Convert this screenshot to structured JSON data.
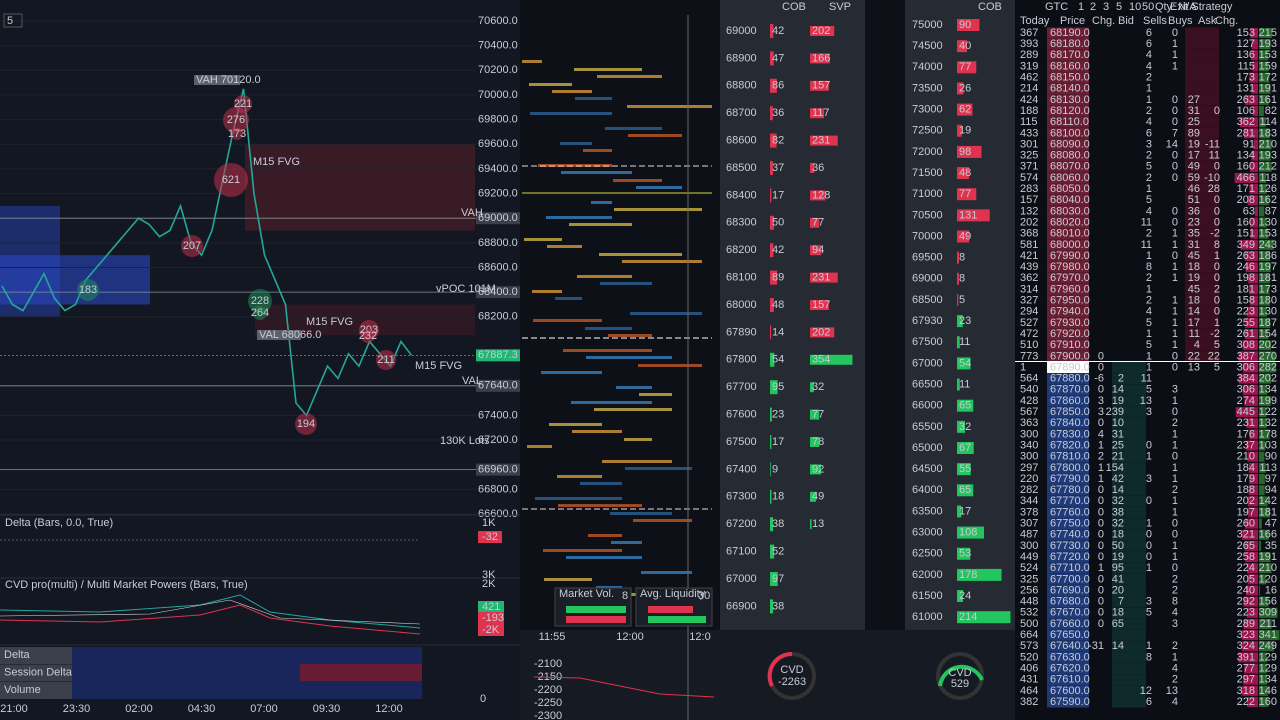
{
  "main_chart": {
    "price_axis": [
      {
        "value": 70600,
        "label": "70600.0"
      },
      {
        "value": 70400,
        "label": "70400.0"
      },
      {
        "value": 70200,
        "label": "70200.0"
      },
      {
        "value": 70000,
        "label": "70000.0"
      },
      {
        "value": 69800,
        "label": "69800.0"
      },
      {
        "value": 69600,
        "label": "69600.0"
      },
      {
        "value": 69400,
        "label": "69400.0"
      },
      {
        "value": 69200,
        "label": "69200.0"
      },
      {
        "value": 68800,
        "label": "68800.0"
      },
      {
        "value": 68600,
        "label": "68600.0"
      },
      {
        "value": 68200,
        "label": "68200.0"
      },
      {
        "value": 67400,
        "label": "67400.0"
      },
      {
        "value": 67200,
        "label": "67200.0"
      },
      {
        "value": 66800,
        "label": "66800.0"
      },
      {
        "value": 66600,
        "label": "66600.0"
      }
    ],
    "price_limits": [
      66600,
      70600
    ],
    "highlighted_prices": [
      {
        "value": 69000,
        "label": "69000.0"
      },
      {
        "value": 68400,
        "label": "68400.0"
      },
      {
        "value": 67887.3,
        "label": "67887.3"
      },
      {
        "value": 67640,
        "label": "67640.0"
      },
      {
        "value": 66960,
        "label": "66960.0"
      }
    ],
    "time_axis": [
      "21:00",
      "23:30",
      "02:00",
      "04:30",
      "07:00",
      "09:30",
      "12:00"
    ],
    "price_path": [
      68450,
      68300,
      68250,
      68400,
      68550,
      68350,
      68250,
      68300,
      68500,
      68600,
      68700,
      68800,
      68900,
      69000,
      68950,
      68850,
      68900,
      69100,
      68800,
      68700,
      68900,
      69300,
      69700,
      70050,
      69200,
      68700,
      68500,
      68300,
      67500,
      67400,
      67600,
      67800,
      67700,
      67900,
      67800,
      68000,
      67900,
      67800,
      68000,
      67887.3
    ],
    "level_labels": {
      "vah_tag": "VAH 70120.0",
      "val_tag": "VAL 68066.0",
      "vah": "VAH",
      "val": "VAL",
      "vpoc": "vPOC 101M",
      "lots": "130K Lots"
    },
    "fvg_labels": [
      "M15 FVG",
      "M15 FVG",
      "M15 FVG"
    ],
    "bubbles": [
      276,
      221,
      173,
      621,
      207,
      183,
      228,
      264,
      203,
      232,
      211,
      194
    ],
    "timeframe": "5",
    "delta_pane": {
      "title": "Delta (Bars, 0.0, True)",
      "axis": [
        "1K",
        "-32"
      ]
    },
    "cvd_pane": {
      "title": "CVD pro(multi) / Multi Market Powers (Bars, True)",
      "axis": [
        "3K",
        "2K",
        "421",
        "-193",
        "-2K"
      ]
    },
    "bottom_pane": {
      "rows": [
        "Delta",
        "Session Delta",
        "Volume"
      ],
      "axis": "0"
    }
  },
  "cob_panel": {
    "headers": [
      "COB",
      "SVP"
    ],
    "ladder": [
      {
        "price": "69000",
        "cob": 42,
        "svp": 202
      },
      {
        "price": "68900",
        "cob": 47,
        "svp": 166
      },
      {
        "price": "68800",
        "cob": 86,
        "svp": 157
      },
      {
        "price": "68700",
        "cob": 36,
        "svp": 117
      },
      {
        "price": "68600",
        "cob": 82,
        "svp": 231
      },
      {
        "price": "68500",
        "cob": 37,
        "svp": 36
      },
      {
        "price": "68400",
        "cob": 17,
        "svp": 128
      },
      {
        "price": "68300",
        "cob": 50,
        "svp": 77
      },
      {
        "price": "68200",
        "cob": 42,
        "svp": 94
      },
      {
        "price": "68100",
        "cob": 89,
        "svp": 231
      },
      {
        "price": "68000",
        "cob": 48,
        "svp": 157
      },
      {
        "price": "67890",
        "cob": 14,
        "svp": 202
      },
      {
        "price": "67800",
        "cob": 54,
        "svp": 354
      },
      {
        "price": "67700",
        "cob": 95,
        "svp": 32
      },
      {
        "price": "67600",
        "cob": 23,
        "svp": 77
      },
      {
        "price": "67500",
        "cob": 17,
        "svp": 78
      },
      {
        "price": "67400",
        "cob": 9,
        "svp": 92
      },
      {
        "price": "67300",
        "cob": 18,
        "svp": 49
      },
      {
        "price": "67200",
        "cob": 38,
        "svp": 13
      },
      {
        "price": "67100",
        "cob": 52,
        "svp": null
      },
      {
        "price": "67000",
        "cob": 97,
        "svp": null
      },
      {
        "price": "66900",
        "cob": 38,
        "svp": null
      }
    ],
    "market_vol": {
      "label": "Market Vol.",
      "value": "8"
    },
    "avg_liquidity": {
      "label": "Avg. Liquidity",
      "value": "30"
    },
    "time_axis": [
      "11:55",
      "12:00",
      "12:0"
    ],
    "cvd_axis": [
      "-2100",
      "-2150",
      "-2200",
      "-2250",
      "-2300"
    ],
    "gauge": {
      "label": "CVD",
      "value": "-2263"
    }
  },
  "cob_panel_2": {
    "header": "COB",
    "ladder": [
      {
        "price": "75000",
        "v": 90
      },
      {
        "price": "74500",
        "v": 40
      },
      {
        "price": "74000",
        "v": 77
      },
      {
        "price": "73500",
        "v": 26
      },
      {
        "price": "73000",
        "v": 62
      },
      {
        "price": "72500",
        "v": 19
      },
      {
        "price": "72000",
        "v": 98
      },
      {
        "price": "71500",
        "v": 48
      },
      {
        "price": "71000",
        "v": 77
      },
      {
        "price": "70500",
        "v": 131
      },
      {
        "price": "70000",
        "v": 49
      },
      {
        "price": "69500",
        "v": 8
      },
      {
        "price": "69000",
        "v": 8
      },
      {
        "price": "68500",
        "v": 5
      },
      {
        "price": "67930",
        "v": 23
      },
      {
        "price": "67500",
        "v": 11
      },
      {
        "price": "67000",
        "v": 54
      },
      {
        "price": "66500",
        "v": 11
      },
      {
        "price": "66000",
        "v": 65
      },
      {
        "price": "65500",
        "v": 32
      },
      {
        "price": "65000",
        "v": 67
      },
      {
        "price": "64500",
        "v": 55
      },
      {
        "price": "64000",
        "v": 65
      },
      {
        "price": "63500",
        "v": 17
      },
      {
        "price": "63000",
        "v": 108
      },
      {
        "price": "62500",
        "v": 53
      },
      {
        "price": "62000",
        "v": 178
      },
      {
        "price": "61500",
        "v": 24
      },
      {
        "price": "61000",
        "v": 214
      }
    ],
    "gauge": {
      "label": "CVD",
      "value": "529"
    }
  },
  "dom": {
    "toolbar": [
      "GTC",
      "1",
      "2",
      "3",
      "5",
      "10",
      "50",
      "Qty: N/A",
      "Exit Strategy"
    ],
    "columns": [
      "Today",
      "Price",
      "Chg.",
      "Bid",
      "Sells",
      "Buys",
      "Ask",
      "Chg."
    ],
    "current_row": 30,
    "rows": [
      [
        "367",
        "68190.0",
        null,
        null,
        "6",
        "0",
        null,
        null,
        "153",
        "215"
      ],
      [
        "393",
        "68180.0",
        null,
        null,
        "6",
        "1",
        null,
        null,
        "127",
        "193"
      ],
      [
        "289",
        "68170.0",
        null,
        null,
        "4",
        "1",
        null,
        null,
        "136",
        "153"
      ],
      [
        "319",
        "68160.0",
        null,
        null,
        "4",
        "1",
        null,
        null,
        "115",
        "159"
      ],
      [
        "462",
        "68150.0",
        null,
        null,
        "2",
        null,
        null,
        null,
        "173",
        "172"
      ],
      [
        "214",
        "68140.0",
        null,
        null,
        "1",
        null,
        null,
        null,
        "131",
        "191"
      ],
      [
        "424",
        "68130.0",
        null,
        null,
        "1",
        "0",
        "27",
        null,
        "263",
        "161"
      ],
      [
        "188",
        "68120.0",
        null,
        null,
        "2",
        "0",
        "31",
        "0",
        "106",
        "82"
      ],
      [
        "115",
        "68110.0",
        null,
        null,
        "4",
        "0",
        "25",
        null,
        "362",
        "114"
      ],
      [
        "433",
        "68100.0",
        null,
        null,
        "6",
        "7",
        "89",
        null,
        "281",
        "183"
      ],
      [
        "301",
        "68090.0",
        null,
        null,
        "3",
        "14",
        "19",
        "-11",
        "91",
        "210"
      ],
      [
        "325",
        "68080.0",
        null,
        null,
        "2",
        "0",
        "17",
        "11",
        "134",
        "193"
      ],
      [
        "371",
        "68070.0",
        null,
        null,
        "5",
        "0",
        "49",
        "0",
        "160",
        "212"
      ],
      [
        "574",
        "68060.0",
        null,
        null,
        "2",
        "0",
        "59",
        "-10",
        "466",
        "118"
      ],
      [
        "283",
        "68050.0",
        null,
        null,
        "1",
        null,
        "46",
        "28",
        "171",
        "126"
      ],
      [
        "157",
        "68040.0",
        null,
        null,
        "5",
        null,
        "51",
        "0",
        "208",
        "162"
      ],
      [
        "132",
        "68030.0",
        null,
        null,
        "4",
        "0",
        "36",
        "0",
        "63",
        "87"
      ],
      [
        "202",
        "68020.0",
        null,
        null,
        "11",
        "0",
        "23",
        "0",
        "160",
        "130"
      ],
      [
        "368",
        "68010.0",
        null,
        null,
        "2",
        "1",
        "35",
        "-2",
        "151",
        "153"
      ],
      [
        "581",
        "68000.0",
        null,
        null,
        "11",
        "1",
        "31",
        "8",
        "349",
        "243"
      ],
      [
        "421",
        "67990.0",
        null,
        null,
        "1",
        "0",
        "45",
        "1",
        "263",
        "186"
      ],
      [
        "439",
        "67980.0",
        null,
        null,
        "8",
        "1",
        "18",
        "0",
        "246",
        "197"
      ],
      [
        "362",
        "67970.0",
        null,
        null,
        "2",
        "1",
        "19",
        "0",
        "198",
        "181"
      ],
      [
        "314",
        "67960.0",
        null,
        null,
        "1",
        null,
        "45",
        "2",
        "181",
        "173"
      ],
      [
        "327",
        "67950.0",
        null,
        null,
        "2",
        "1",
        "18",
        "0",
        "158",
        "180"
      ],
      [
        "294",
        "67940.0",
        null,
        null,
        "4",
        "1",
        "14",
        "0",
        "223",
        "130"
      ],
      [
        "527",
        "67930.0",
        null,
        null,
        "5",
        "1",
        "17",
        "1",
        "255",
        "187"
      ],
      [
        "472",
        "67920.0",
        null,
        null,
        "1",
        "1",
        "11",
        "-2",
        "261",
        "154"
      ],
      [
        "510",
        "67910.0",
        null,
        null,
        "5",
        "1",
        "4",
        "5",
        "308",
        "202"
      ],
      [
        "773",
        "67900.0",
        "0",
        null,
        "1",
        "0",
        "22",
        "22",
        "387",
        "270"
      ],
      [
        "1",
        "67890.0",
        "0",
        null,
        "1",
        "0",
        "13",
        "5",
        "306",
        "282"
      ],
      [
        "564",
        "67880.0",
        "-6",
        "2",
        "11",
        null,
        null,
        null,
        "384",
        "202"
      ],
      [
        "540",
        "67870.0",
        "0",
        "14",
        "5",
        "3",
        null,
        null,
        "306",
        "134"
      ],
      [
        "428",
        "67860.0",
        "3",
        "19",
        "13",
        "1",
        null,
        null,
        "274",
        "199"
      ],
      [
        "567",
        "67850.0",
        "3",
        "239",
        "3",
        "0",
        null,
        null,
        "445",
        "122"
      ],
      [
        "363",
        "67840.0",
        "0",
        "10",
        null,
        "2",
        null,
        null,
        "231",
        "132"
      ],
      [
        "300",
        "67830.0",
        "4",
        "31",
        null,
        "1",
        null,
        null,
        "176",
        "178"
      ],
      [
        "340",
        "67820.0",
        "1",
        "25",
        "0",
        "1",
        null,
        null,
        "237",
        "103"
      ],
      [
        "300",
        "67810.0",
        "2",
        "21",
        "1",
        "0",
        null,
        null,
        "210",
        "90"
      ],
      [
        "297",
        "67800.0",
        "1",
        "154",
        null,
        "1",
        null,
        null,
        "184",
        "113"
      ],
      [
        "220",
        "67790.0",
        "1",
        "42",
        "3",
        "1",
        null,
        null,
        "179",
        "97"
      ],
      [
        "282",
        "67780.0",
        "0",
        "14",
        null,
        "2",
        null,
        null,
        "188",
        "94"
      ],
      [
        "344",
        "67770.0",
        "0",
        "32",
        "0",
        "1",
        null,
        null,
        "202",
        "142"
      ],
      [
        "378",
        "67760.0",
        "0",
        "38",
        null,
        "1",
        null,
        null,
        "197",
        "181"
      ],
      [
        "307",
        "67750.0",
        "0",
        "32",
        "1",
        "0",
        null,
        null,
        "260",
        "47"
      ],
      [
        "487",
        "67740.0",
        "0",
        "18",
        "0",
        "0",
        null,
        null,
        "321",
        "166"
      ],
      [
        "300",
        "67730.0",
        "0",
        "50",
        "0",
        "1",
        null,
        null,
        "265",
        "35"
      ],
      [
        "449",
        "67720.0",
        "0",
        "19",
        "0",
        "1",
        null,
        null,
        "258",
        "191"
      ],
      [
        "524",
        "67710.0",
        "1",
        "95",
        "1",
        "0",
        null,
        null,
        "224",
        "210"
      ],
      [
        "325",
        "67700.0",
        "0",
        "41",
        null,
        "2",
        null,
        null,
        "205",
        "120"
      ],
      [
        "256",
        "67690.0",
        "0",
        "20",
        null,
        "2",
        null,
        null,
        "240",
        "16"
      ],
      [
        "448",
        "67680.0",
        "0",
        "7",
        "3",
        "8",
        null,
        null,
        "292",
        "156"
      ],
      [
        "532",
        "67670.0",
        "0",
        "18",
        "5",
        "4",
        null,
        null,
        "223",
        "309"
      ],
      [
        "500",
        "67660.0",
        "0",
        "65",
        null,
        "3",
        null,
        null,
        "289",
        "211"
      ],
      [
        "664",
        "67650.0",
        null,
        null,
        null,
        null,
        null,
        null,
        "323",
        "341"
      ],
      [
        "573",
        "67640.0",
        "-31",
        "14",
        "1",
        "2",
        null,
        null,
        "324",
        "249"
      ],
      [
        "520",
        "67630.0",
        null,
        null,
        "8",
        "1",
        null,
        null,
        "391",
        "129"
      ],
      [
        "406",
        "67620.0",
        null,
        null,
        null,
        "4",
        null,
        null,
        "277",
        "129"
      ],
      [
        "431",
        "67610.0",
        null,
        null,
        null,
        "2",
        null,
        null,
        "297",
        "134"
      ],
      [
        "464",
        "67600.0",
        null,
        null,
        "12",
        "13",
        null,
        null,
        "318",
        "146"
      ],
      [
        "382",
        "67590.0",
        null,
        null,
        "6",
        "4",
        null,
        null,
        "222",
        "160"
      ]
    ]
  }
}
